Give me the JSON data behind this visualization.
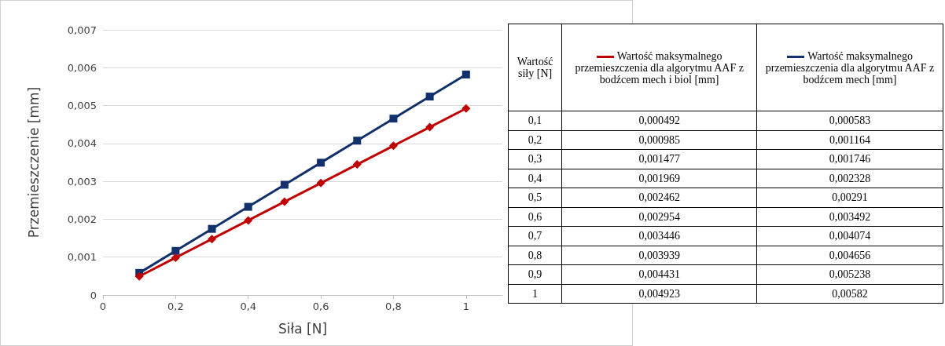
{
  "chart_data": {
    "type": "line",
    "xlabel": "Siła [N]",
    "ylabel": "Przemieszczenie [mm]",
    "x": [
      0.1,
      0.2,
      0.3,
      0.4,
      0.5,
      0.6,
      0.7,
      0.8,
      0.9,
      1
    ],
    "series": [
      {
        "name": "Wartość maksymalnego przemieszczenia dla algorytmu AAF z bodźcem mech i biol [mm]",
        "color": "#c00000",
        "marker": "diamond",
        "values": [
          0.000492,
          0.000985,
          0.001477,
          0.001969,
          0.002462,
          0.002954,
          0.003446,
          0.003939,
          0.004431,
          0.004923
        ]
      },
      {
        "name": "Wartość maksymalnego przemieszczenia dla algorytmu AAF z bodźcem mech [mm]",
        "color": "#12306b",
        "marker": "square",
        "values": [
          0.000583,
          0.001164,
          0.001746,
          0.002328,
          0.00291,
          0.003492,
          0.004074,
          0.004656,
          0.005238,
          0.00582
        ]
      }
    ],
    "xlim": [
      0,
      1.1
    ],
    "xticks": [
      0,
      {
        "value": 0.2,
        "label": "0,2"
      },
      {
        "value": 0.4,
        "label": "0,4"
      },
      {
        "value": 0.6,
        "label": "0,6"
      },
      {
        "value": 0.8,
        "label": "0,8"
      },
      1
    ],
    "ylim": [
      0,
      0.007
    ],
    "yticks": [
      0,
      {
        "value": 0.001,
        "label": "0,001"
      },
      {
        "value": 0.002,
        "label": "0,002"
      },
      {
        "value": 0.003,
        "label": "0,003"
      },
      {
        "value": 0.004,
        "label": "0,004"
      },
      {
        "value": 0.005,
        "label": "0,005"
      },
      {
        "value": 0.006,
        "label": "0,006"
      },
      {
        "value": 0.007,
        "label": "0,007"
      }
    ],
    "grid": "y",
    "legend": "right",
    "line_style": "solid",
    "annotations": [
      "Wartość siły [N]",
      "0,1",
      "0,000492",
      "0,000583",
      "0,2",
      "0,000985",
      "0,001164",
      "0,3",
      "0,001477",
      "0,001746",
      "0,4",
      "0,001969",
      "0,002328",
      "0,5",
      "0,002462",
      "0,00291",
      "0,6",
      "0,002954",
      "0,003492",
      "0,7",
      "0,003446",
      "0,004074",
      "0,8",
      "0,003939",
      "0,004656",
      "0,9",
      "0,004431",
      "0,005238",
      "1",
      "0,004923",
      "0,00582"
    ]
  }
}
